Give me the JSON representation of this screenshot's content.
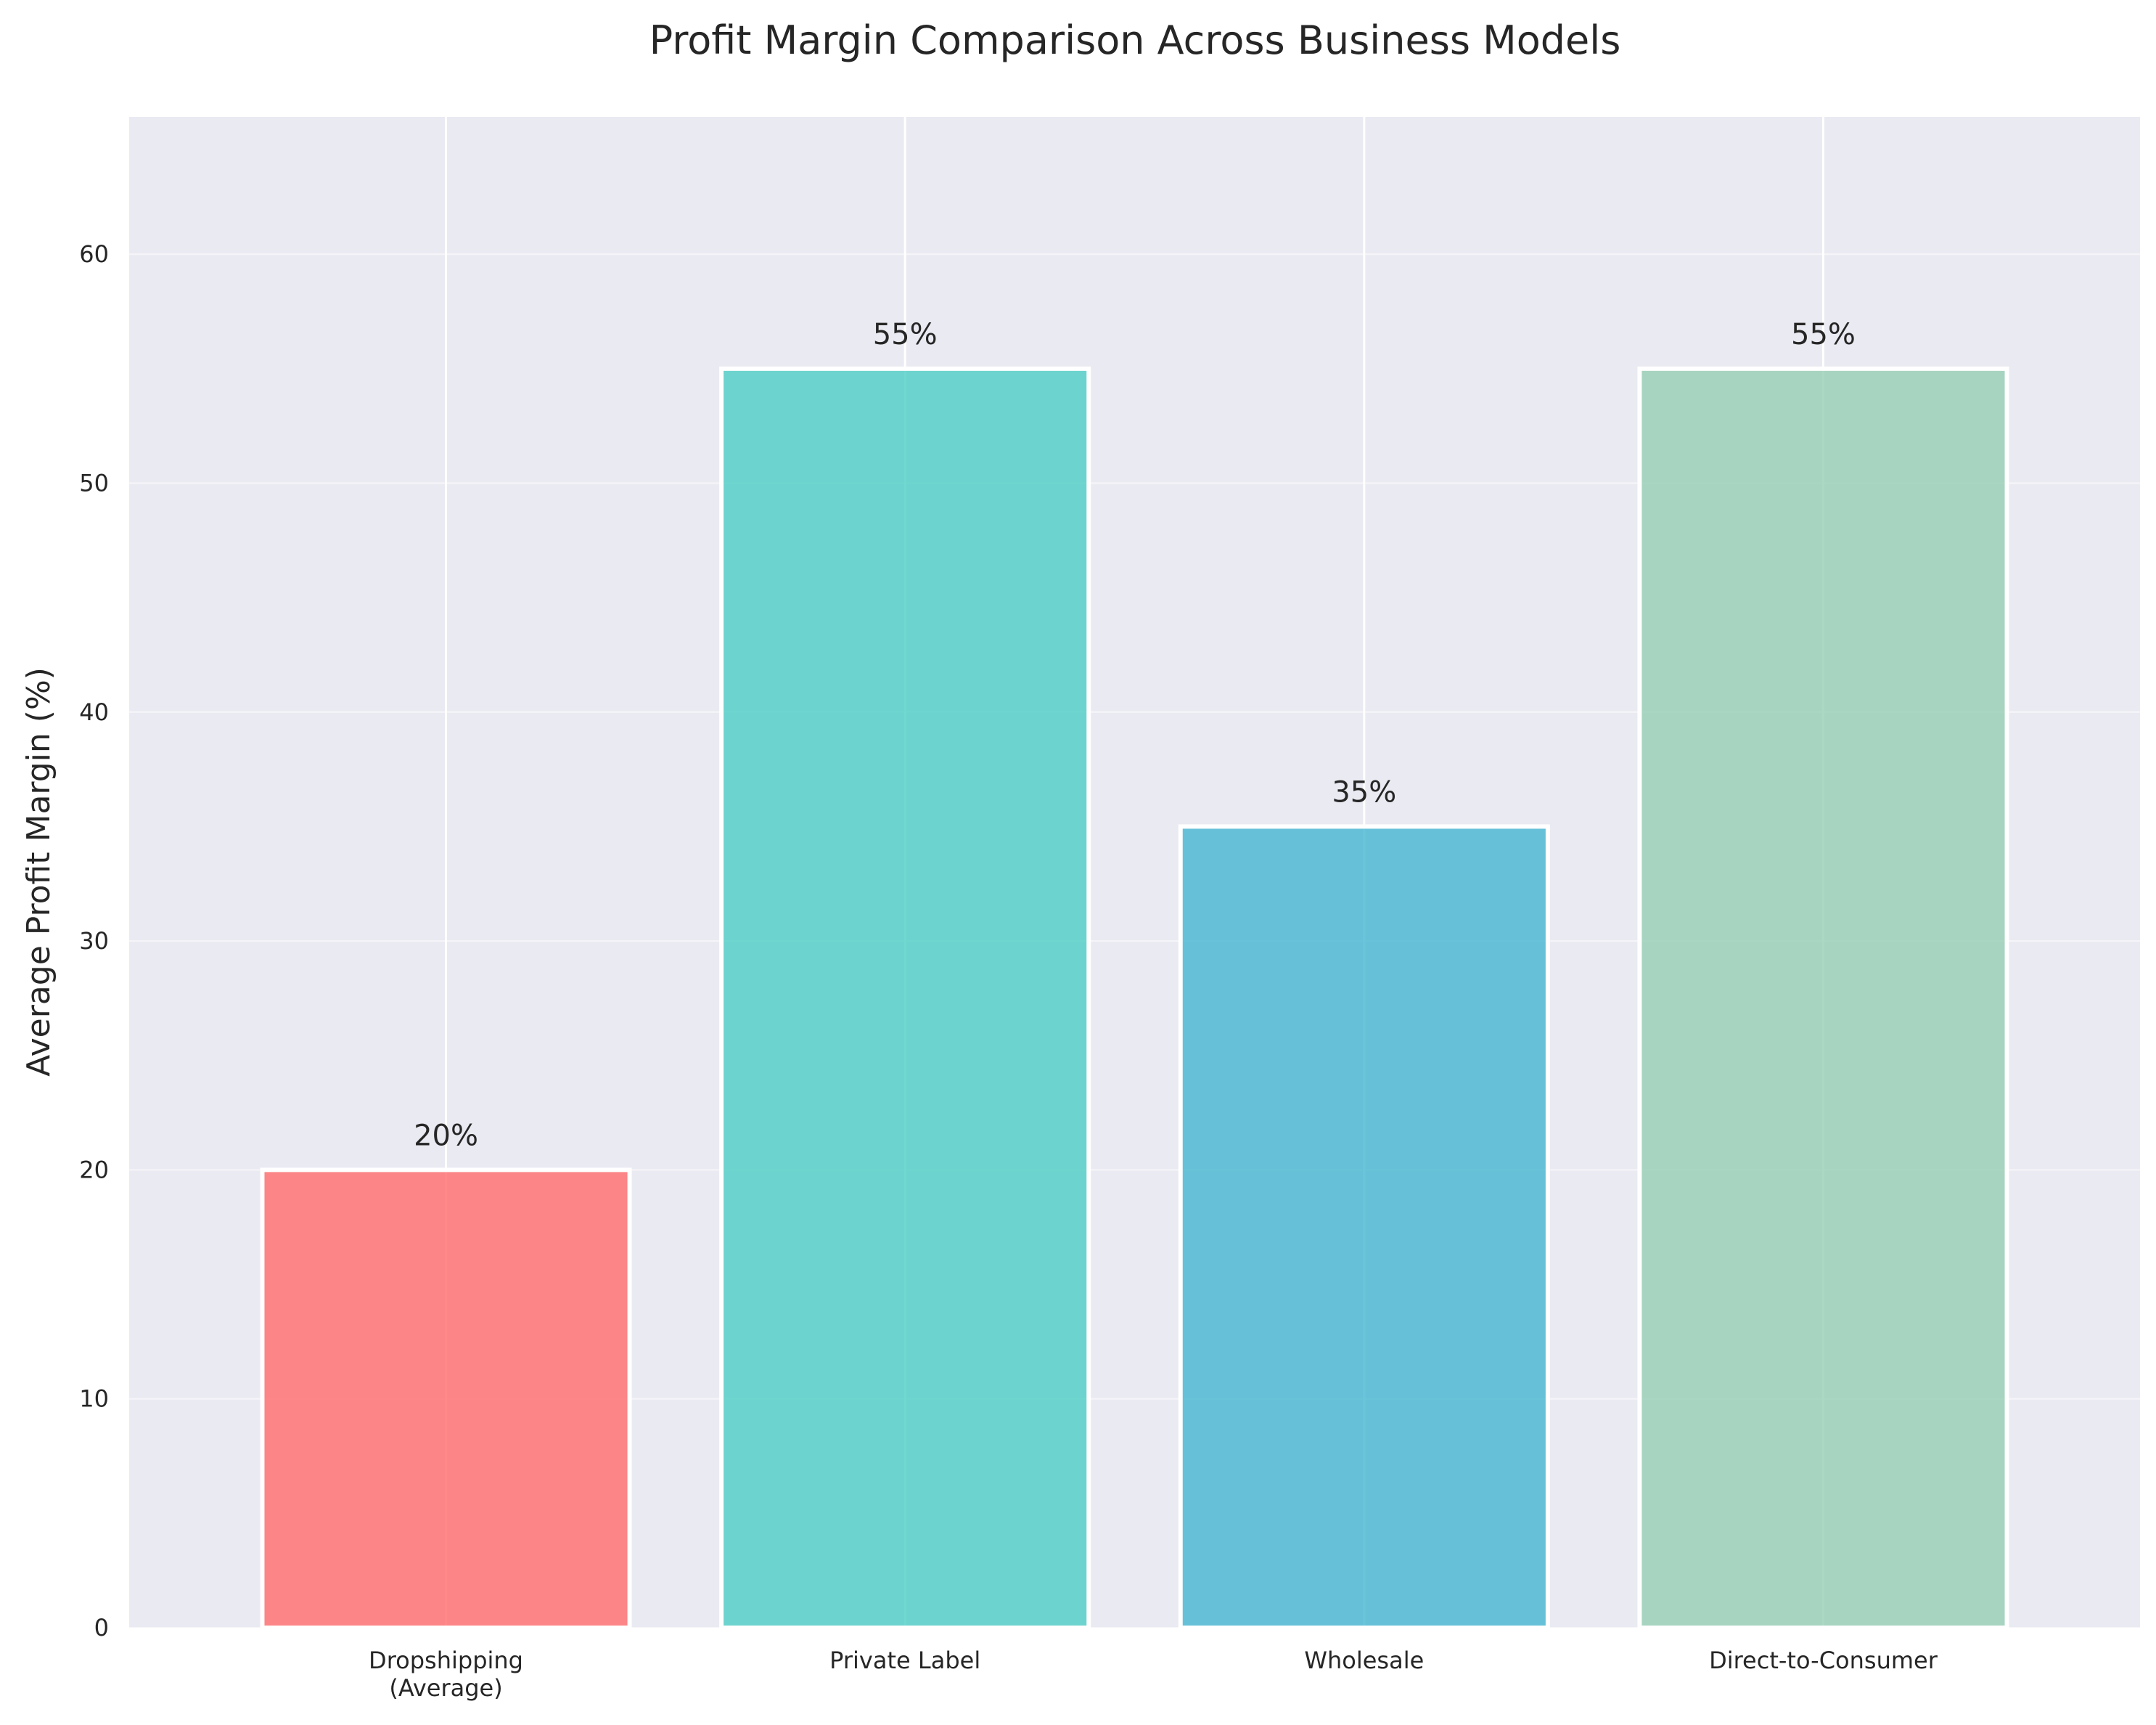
{
  "chart_data": {
    "type": "bar",
    "title": "Profit Margin Comparison Across Business Models",
    "xlabel": "",
    "ylabel": "Average Profit Margin (%)",
    "categories": [
      "Dropshipping\n(Average)",
      "Private Label",
      "Wholesale",
      "Direct-to-Consumer"
    ],
    "values": [
      20,
      55,
      35,
      55
    ],
    "data_labels": [
      "20%",
      "55%",
      "35%",
      "55%"
    ],
    "bar_colors": [
      "#FF6B6B",
      "#4ECDC4",
      "#45B7D1",
      "#96CEB4"
    ],
    "ylim": [
      0,
      66
    ],
    "yticks": [
      0,
      10,
      20,
      30,
      40,
      50,
      60
    ],
    "grid": true,
    "background": "#EAEAF2"
  }
}
